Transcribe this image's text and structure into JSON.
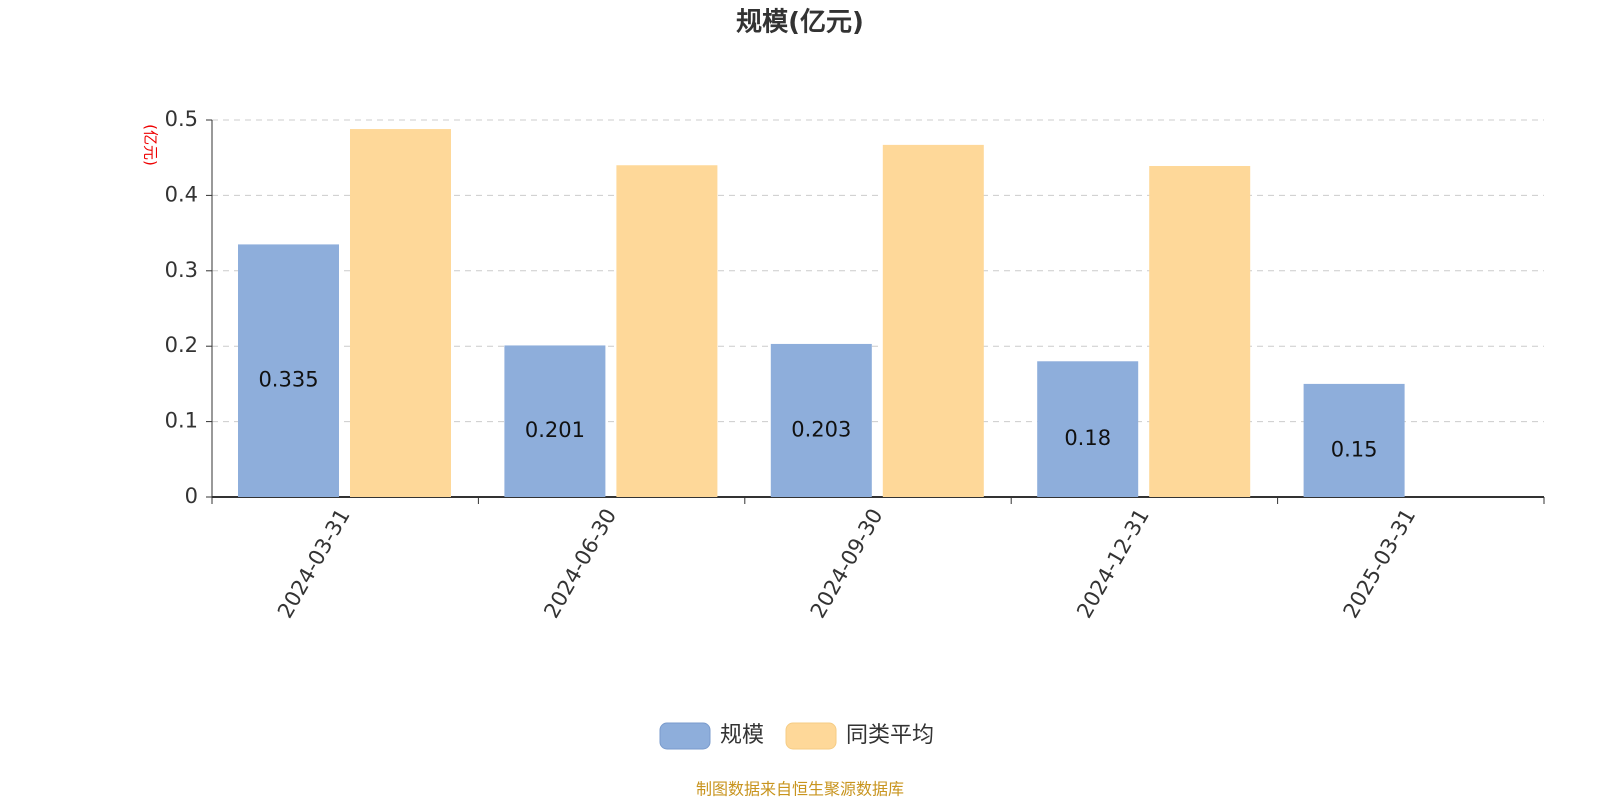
{
  "chart_data": {
    "type": "bar",
    "title": "规模(亿元)",
    "y_label": "(亿元)",
    "categories": [
      "2024-03-31",
      "2024-06-30",
      "2024-09-30",
      "2024-12-31",
      "2025-03-31"
    ],
    "series": [
      {
        "name": "规模",
        "color": "#8eaedb",
        "values": [
          0.335,
          0.201,
          0.203,
          0.18,
          0.15
        ]
      },
      {
        "name": "同类平均",
        "color": "#fed899",
        "values": [
          0.488,
          0.44,
          0.467,
          0.439,
          null
        ]
      }
    ],
    "ylim": [
      0,
      0.5
    ],
    "yticks": [
      0,
      0.1,
      0.2,
      0.3,
      0.4,
      0.5
    ],
    "grid": true,
    "legend": "bottom",
    "source": "制图数据来自恒生聚源数据库"
  }
}
